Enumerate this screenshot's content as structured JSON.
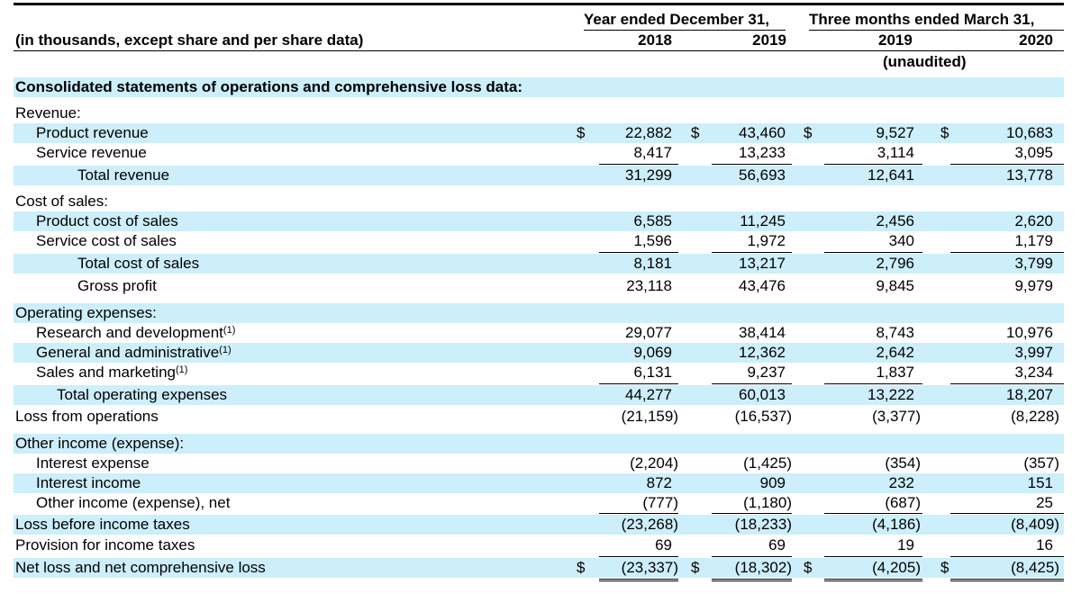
{
  "header": {
    "units_label": "(in thousands, except share and per share data)",
    "group1_title": "Year ended December 31,",
    "group2_title": "Three months ended March 31,",
    "col_years": [
      "2018",
      "2019",
      "2019",
      "2020"
    ],
    "unaudited": "(unaudited)"
  },
  "section_title": "Consolidated statements of operations and comprehensive loss data:",
  "rows": [
    {
      "label": "Revenue:",
      "indent": 0,
      "values": [
        "",
        "",
        "",
        ""
      ]
    },
    {
      "label": "Product revenue",
      "indent": 1,
      "dollar": true,
      "values": [
        "22,882",
        "43,460",
        "9,527",
        "10,683"
      ]
    },
    {
      "label": "Service revenue",
      "indent": 1,
      "values": [
        "8,417",
        "13,233",
        "3,114",
        "3,095"
      ]
    },
    {
      "label": "Total revenue",
      "indent": 3,
      "values": [
        "31,299",
        "56,693",
        "12,641",
        "13,778"
      ]
    },
    {
      "label": "Cost of sales:",
      "indent": 0,
      "values": [
        "",
        "",
        "",
        ""
      ]
    },
    {
      "label": "Product cost of sales",
      "indent": 1,
      "values": [
        "6,585",
        "11,245",
        "2,456",
        "2,620"
      ]
    },
    {
      "label": "Service cost of sales",
      "indent": 1,
      "values": [
        "1,596",
        "1,972",
        "340",
        "1,179"
      ]
    },
    {
      "label": "Total cost of sales",
      "indent": 3,
      "values": [
        "8,181",
        "13,217",
        "2,796",
        "3,799"
      ]
    },
    {
      "label": "Gross profit",
      "indent": 3,
      "values": [
        "23,118",
        "43,476",
        "9,845",
        "9,979"
      ]
    },
    {
      "label": "Operating expenses:",
      "indent": 0,
      "values": [
        "",
        "",
        "",
        ""
      ]
    },
    {
      "label": "Research and development",
      "note": "(1)",
      "indent": 1,
      "values": [
        "29,077",
        "38,414",
        "8,743",
        "10,976"
      ]
    },
    {
      "label": "General and administrative",
      "note": "(1)",
      "indent": 1,
      "values": [
        "9,069",
        "12,362",
        "2,642",
        "3,997"
      ]
    },
    {
      "label": "Sales and marketing",
      "note": "(1)",
      "indent": 1,
      "values": [
        "6,131",
        "9,237",
        "1,837",
        "3,234"
      ]
    },
    {
      "label": "Total operating expenses",
      "indent": 2,
      "values": [
        "44,277",
        "60,013",
        "13,222",
        "18,207"
      ]
    },
    {
      "label": "Loss from operations",
      "indent": 0,
      "values": [
        "(21,159)",
        "(16,537)",
        "(3,377)",
        "(8,228)"
      ]
    },
    {
      "label": "Other income (expense):",
      "indent": 0,
      "values": [
        "",
        "",
        "",
        ""
      ]
    },
    {
      "label": "Interest expense",
      "indent": 1,
      "values": [
        "(2,204)",
        "(1,425)",
        "(354)",
        "(357)"
      ]
    },
    {
      "label": "Interest income",
      "indent": 1,
      "values": [
        "872",
        "909",
        "232",
        "151"
      ]
    },
    {
      "label": "Other income (expense), net",
      "indent": 1,
      "values": [
        "(777)",
        "(1,180)",
        "(687)",
        "25"
      ]
    },
    {
      "label": "Loss before income taxes",
      "indent": 0,
      "values": [
        "(23,268)",
        "(18,233)",
        "(4,186)",
        "(8,409)"
      ]
    },
    {
      "label": "Provision for income taxes",
      "indent": 0,
      "values": [
        "69",
        "69",
        "19",
        "16"
      ]
    },
    {
      "label": "Net loss and net comprehensive loss",
      "indent": 0,
      "dollar": true,
      "values": [
        "(23,337)",
        "(18,302)",
        "(4,205)",
        "(8,425)"
      ]
    }
  ],
  "currency_symbol": "$"
}
